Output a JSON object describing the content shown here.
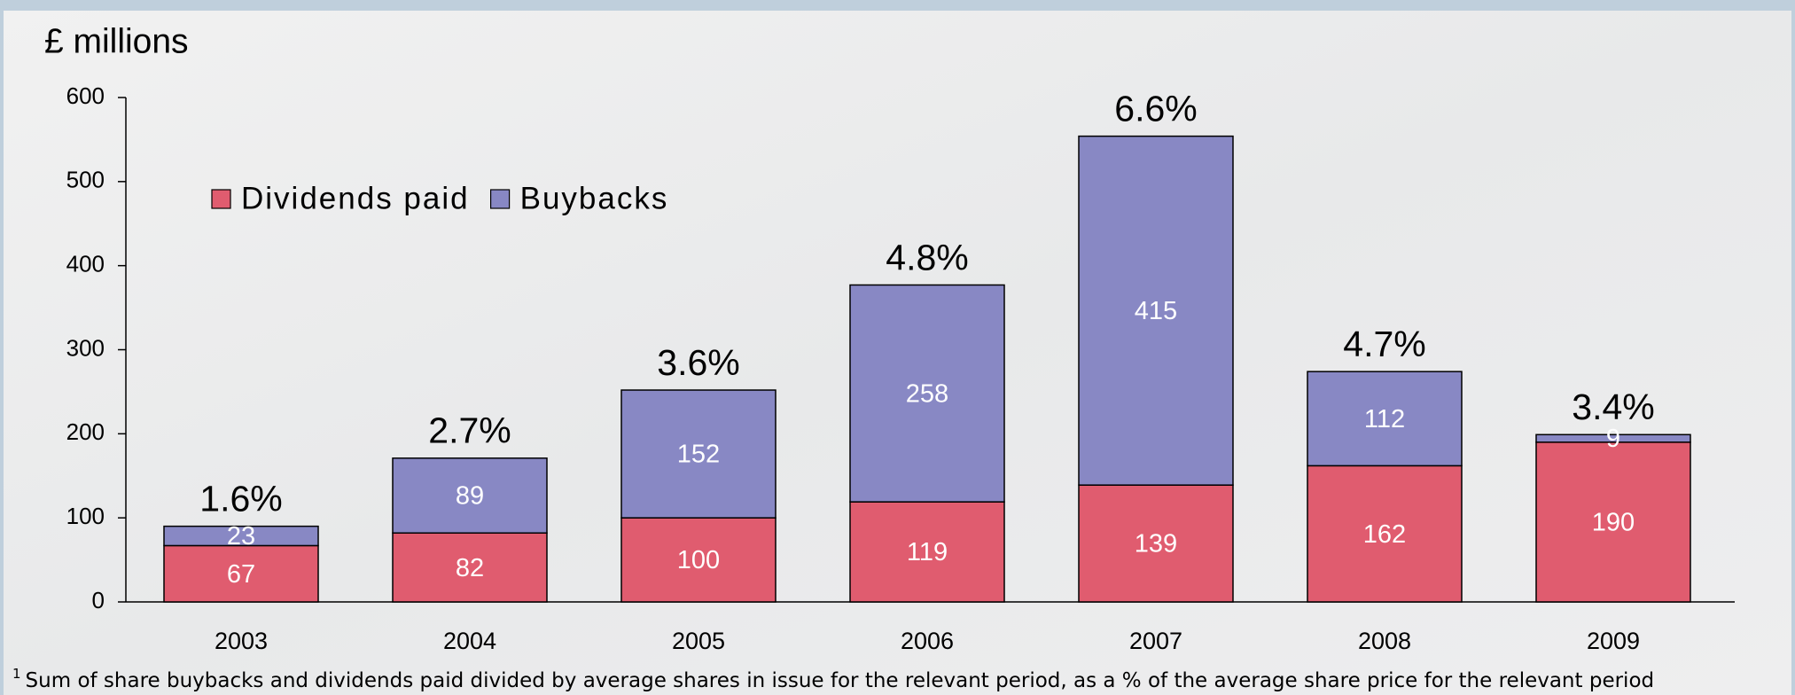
{
  "chart_data": {
    "type": "stacked_bar",
    "y_label": "£ millions",
    "categories": [
      "2003",
      "2004",
      "2005",
      "2006",
      "2007",
      "2008",
      "2009"
    ],
    "series": [
      {
        "name": "Dividends paid",
        "color": "#e05c6f",
        "values": [
          67,
          82,
          100,
          119,
          139,
          162,
          190
        ]
      },
      {
        "name": "Buybacks",
        "color": "#8888c4",
        "values": [
          23,
          89,
          152,
          258,
          415,
          112,
          9
        ]
      }
    ],
    "annotations": [
      "1.6%",
      "2.7%",
      "3.6%",
      "4.8%",
      "6.6%",
      "4.7%",
      "3.4%"
    ],
    "ylim": [
      0,
      600
    ],
    "yticks": [
      0,
      100,
      200,
      300,
      400,
      500,
      600
    ],
    "grid": false,
    "legend": "top-left",
    "footnote_marker": "1",
    "footnote": "Sum of share buybacks and dividends paid divided by average shares in issue for the relevant period, as a % of the average share price for  the relevant period"
  }
}
